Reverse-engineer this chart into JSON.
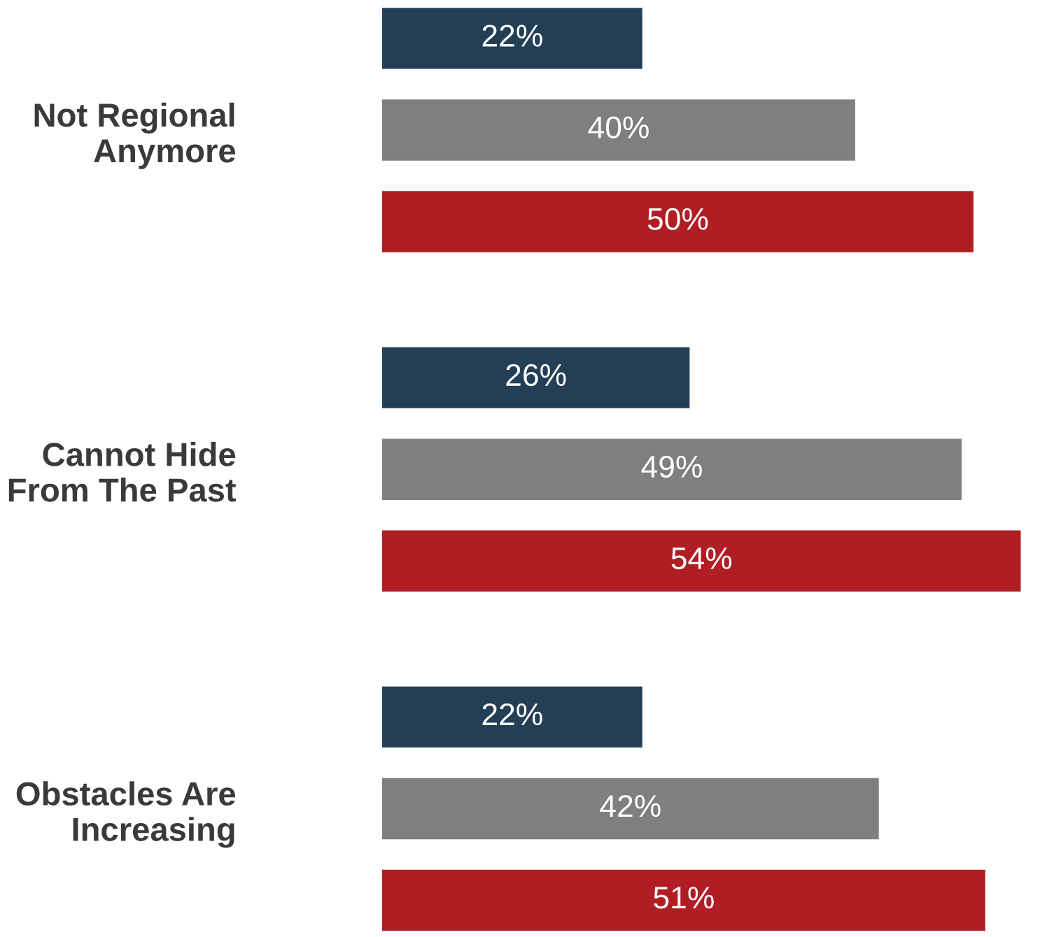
{
  "chart_data": {
    "type": "bar",
    "orientation": "horizontal",
    "categories": [
      "Not Regional\nAnymore",
      "Cannot Hide\nFrom The Past",
      "Obstacles Are\nIncreasing"
    ],
    "series": [
      {
        "color": "#243f55",
        "values": [
          22,
          26,
          22
        ],
        "value_labels": [
          "22%",
          "26%",
          "22%"
        ]
      },
      {
        "color": "#7f7f7d",
        "values": [
          40,
          49,
          42
        ],
        "value_labels": [
          "40%",
          "49%",
          "42%"
        ]
      },
      {
        "color": "#b01e24",
        "values": [
          50,
          54,
          51
        ],
        "value_labels": [
          "50%",
          "54%",
          "51%"
        ]
      }
    ]
  }
}
